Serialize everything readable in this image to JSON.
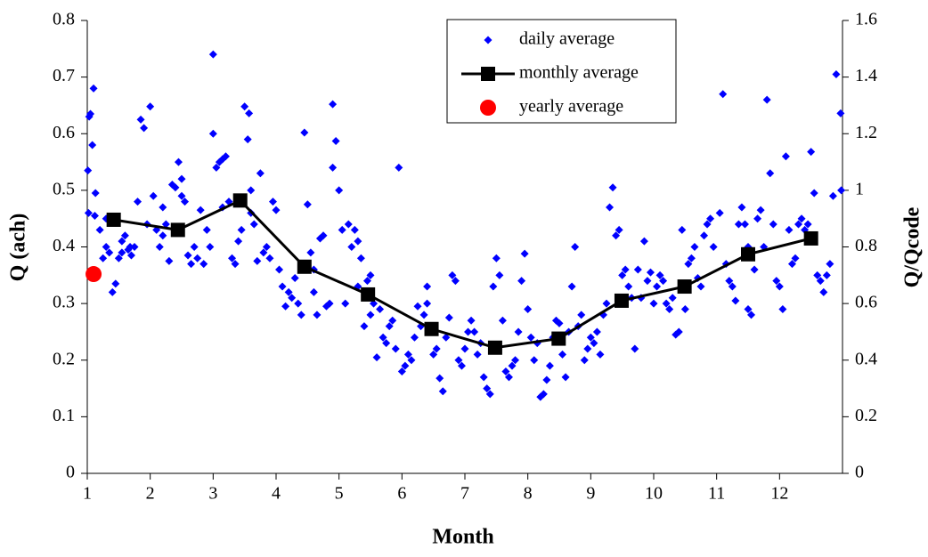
{
  "chart_data": {
    "type": "scatter",
    "x_label": "Month",
    "y_label": "Q (ach)",
    "y2_label": "Q/Qcode",
    "xlim": [
      1,
      13
    ],
    "xticks": [
      1,
      2,
      3,
      4,
      5,
      6,
      7,
      8,
      9,
      10,
      11,
      12
    ],
    "ylim": [
      0,
      0.8
    ],
    "yticks": [
      0,
      0.1,
      0.2,
      0.3,
      0.4,
      0.5,
      0.6,
      0.7,
      0.8
    ],
    "y2lim": [
      0,
      1.6
    ],
    "y2ticks": [
      0,
      0.2,
      0.4,
      0.6,
      0.8,
      1,
      1.2,
      1.4,
      1.6
    ],
    "legend": "top-center",
    "series": [
      {
        "name": "daily average",
        "color": "#0000ff",
        "marker": "diamond",
        "line": false,
        "x": [
          1.01,
          1.03,
          1.05,
          1.1,
          1.08,
          1.13,
          1.02,
          1.12,
          1.2,
          1.25,
          1.3,
          1.35,
          1.4,
          1.45,
          1.5,
          1.55,
          1.6,
          1.65,
          1.7,
          1.75,
          1.8,
          1.85,
          1.9,
          1.95,
          1.55,
          1.3,
          1.68,
          2.0,
          2.05,
          2.1,
          2.15,
          2.2,
          2.25,
          2.3,
          2.35,
          2.4,
          2.45,
          2.5,
          2.55,
          2.6,
          2.65,
          2.7,
          2.75,
          2.8,
          2.85,
          2.9,
          2.95,
          2.5,
          2.2,
          3.0,
          3.0,
          3.05,
          3.1,
          3.15,
          3.2,
          3.25,
          3.3,
          3.35,
          3.4,
          3.45,
          3.5,
          3.55,
          3.57,
          3.6,
          3.65,
          3.7,
          3.75,
          3.8,
          3.85,
          3.9,
          3.95,
          3.15,
          3.6,
          4.0,
          4.05,
          4.1,
          4.15,
          4.2,
          4.25,
          4.3,
          4.35,
          4.4,
          4.45,
          4.5,
          4.55,
          4.6,
          4.65,
          4.7,
          4.75,
          4.8,
          4.85,
          4.9,
          4.95,
          5.0,
          4.9,
          4.6,
          5.05,
          5.1,
          5.15,
          5.2,
          5.25,
          5.3,
          5.35,
          5.4,
          5.45,
          5.5,
          5.55,
          5.6,
          5.65,
          5.7,
          5.75,
          5.8,
          5.85,
          5.9,
          5.95,
          5.5,
          5.3,
          6.0,
          6.05,
          6.1,
          6.15,
          6.2,
          6.25,
          6.3,
          6.35,
          6.4,
          6.45,
          6.5,
          6.55,
          6.6,
          6.65,
          6.7,
          6.75,
          6.8,
          6.85,
          6.9,
          6.95,
          6.4,
          7.0,
          7.05,
          7.1,
          7.15,
          7.2,
          7.25,
          7.3,
          7.35,
          7.4,
          7.45,
          7.5,
          7.55,
          7.6,
          7.65,
          7.7,
          7.75,
          7.8,
          7.85,
          7.9,
          7.95,
          8.0,
          8.05,
          8.1,
          8.15,
          8.2,
          8.25,
          8.3,
          8.35,
          8.4,
          8.45,
          8.5,
          8.55,
          8.6,
          8.65,
          8.7,
          8.75,
          8.8,
          8.85,
          8.9,
          8.95,
          9.0,
          9.05,
          9.1,
          9.15,
          9.2,
          9.25,
          9.3,
          9.35,
          9.4,
          9.45,
          9.5,
          9.55,
          9.6,
          9.65,
          9.7,
          9.75,
          9.8,
          9.85,
          9.9,
          9.95,
          10.0,
          10.05,
          10.1,
          10.15,
          10.2,
          10.25,
          10.3,
          10.35,
          10.4,
          10.45,
          10.5,
          10.55,
          10.6,
          10.65,
          10.7,
          10.75,
          10.8,
          10.85,
          10.9,
          10.95,
          11.05,
          11.1,
          11.15,
          11.2,
          11.25,
          11.3,
          11.35,
          11.4,
          11.45,
          11.5,
          11.55,
          11.6,
          11.65,
          11.7,
          11.75,
          11.8,
          11.85,
          11.9,
          11.95,
          11.5,
          12.0,
          12.05,
          12.1,
          12.15,
          12.2,
          12.25,
          12.3,
          12.35,
          12.4,
          12.45,
          12.5,
          12.55,
          12.6,
          12.65,
          12.7,
          12.75,
          12.8,
          12.85,
          12.9,
          12.97,
          12.98
        ],
        "values": [
          0.535,
          0.63,
          0.635,
          0.68,
          0.58,
          0.495,
          0.46,
          0.455,
          0.43,
          0.38,
          0.4,
          0.39,
          0.32,
          0.335,
          0.38,
          0.41,
          0.42,
          0.395,
          0.385,
          0.4,
          0.48,
          0.625,
          0.61,
          0.44,
          0.39,
          0.45,
          0.4,
          0.648,
          0.49,
          0.43,
          0.4,
          0.42,
          0.44,
          0.375,
          0.51,
          0.505,
          0.55,
          0.49,
          0.48,
          0.385,
          0.37,
          0.4,
          0.38,
          0.465,
          0.37,
          0.43,
          0.4,
          0.52,
          0.47,
          0.74,
          0.6,
          0.54,
          0.55,
          0.555,
          0.56,
          0.48,
          0.38,
          0.37,
          0.41,
          0.43,
          0.648,
          0.59,
          0.636,
          0.46,
          0.44,
          0.375,
          0.53,
          0.39,
          0.4,
          0.38,
          0.48,
          0.47,
          0.5,
          0.465,
          0.36,
          0.33,
          0.295,
          0.32,
          0.31,
          0.345,
          0.3,
          0.28,
          0.602,
          0.475,
          0.39,
          0.32,
          0.28,
          0.415,
          0.42,
          0.295,
          0.3,
          0.652,
          0.587,
          0.5,
          0.54,
          0.36,
          0.43,
          0.3,
          0.44,
          0.4,
          0.43,
          0.41,
          0.38,
          0.26,
          0.34,
          0.35,
          0.3,
          0.205,
          0.29,
          0.24,
          0.23,
          0.26,
          0.27,
          0.22,
          0.54,
          0.28,
          0.33,
          0.18,
          0.19,
          0.21,
          0.2,
          0.24,
          0.295,
          0.26,
          0.28,
          0.33,
          0.25,
          0.21,
          0.22,
          0.168,
          0.145,
          0.24,
          0.275,
          0.35,
          0.34,
          0.2,
          0.19,
          0.3,
          0.22,
          0.25,
          0.27,
          0.25,
          0.21,
          0.23,
          0.17,
          0.15,
          0.14,
          0.33,
          0.38,
          0.35,
          0.27,
          0.18,
          0.17,
          0.19,
          0.2,
          0.25,
          0.34,
          0.388,
          0.29,
          0.24,
          0.2,
          0.23,
          0.135,
          0.14,
          0.165,
          0.19,
          0.24,
          0.27,
          0.265,
          0.21,
          0.17,
          0.25,
          0.33,
          0.4,
          0.26,
          0.28,
          0.2,
          0.22,
          0.24,
          0.23,
          0.25,
          0.21,
          0.28,
          0.3,
          0.47,
          0.505,
          0.42,
          0.43,
          0.35,
          0.36,
          0.33,
          0.31,
          0.22,
          0.36,
          0.31,
          0.41,
          0.34,
          0.355,
          0.3,
          0.33,
          0.35,
          0.34,
          0.3,
          0.29,
          0.31,
          0.245,
          0.25,
          0.43,
          0.29,
          0.37,
          0.38,
          0.4,
          0.345,
          0.33,
          0.42,
          0.44,
          0.45,
          0.4,
          0.46,
          0.67,
          0.37,
          0.34,
          0.33,
          0.305,
          0.44,
          0.47,
          0.44,
          0.29,
          0.28,
          0.36,
          0.45,
          0.465,
          0.4,
          0.66,
          0.53,
          0.44,
          0.34,
          0.4,
          0.33,
          0.29,
          0.56,
          0.43,
          0.37,
          0.38,
          0.44,
          0.45,
          0.43,
          0.44,
          0.568,
          0.495,
          0.35,
          0.34,
          0.32,
          0.35,
          0.37,
          0.49,
          0.705,
          0.636,
          0.5
        ]
      },
      {
        "name": "monthly average",
        "color": "#000000",
        "marker": "square",
        "line": true,
        "x": [
          1.42,
          2.44,
          3.43,
          4.45,
          5.46,
          6.47,
          7.48,
          8.49,
          9.49,
          10.49,
          11.5,
          12.5
        ],
        "values": [
          0.448,
          0.43,
          0.482,
          0.365,
          0.316,
          0.255,
          0.222,
          0.238,
          0.305,
          0.33,
          0.387,
          0.415
        ]
      },
      {
        "name": "yearly average",
        "color": "#ff0000",
        "marker": "circle",
        "line": false,
        "x": [
          1.1
        ],
        "values": [
          0.352
        ]
      }
    ]
  }
}
